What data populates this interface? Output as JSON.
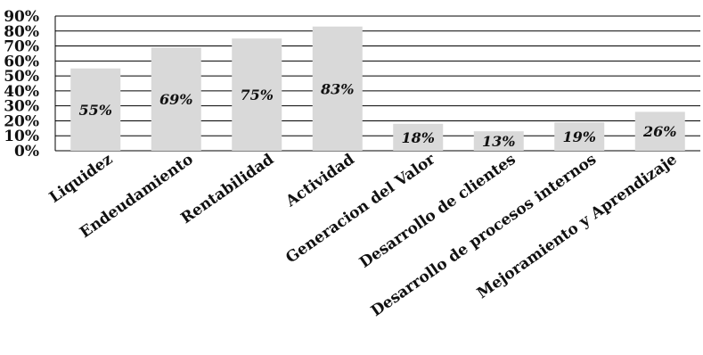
{
  "chart_data": {
    "type": "bar",
    "categories": [
      "Liquidez",
      "Endeudamiento",
      "Rentabilidad",
      "Actividad",
      "Generacion del Valor",
      "Desarrollo de clientes",
      "Desarrollo de procesos internos",
      "Mejoramiento y Aprendizaje"
    ],
    "values": [
      55,
      69,
      75,
      83,
      18,
      13,
      19,
      26
    ],
    "data_labels": [
      "55%",
      "69%",
      "75%",
      "83%",
      "18%",
      "13%",
      "19%",
      "26%"
    ],
    "y_ticks": [
      "0%",
      "10%",
      "20%",
      "30%",
      "40%",
      "50%",
      "60%",
      "70%",
      "80%",
      "90%"
    ],
    "ylim": [
      0,
      90
    ],
    "grid": true,
    "bar_color": "#d9d9d9",
    "grid_color": "#000000"
  }
}
